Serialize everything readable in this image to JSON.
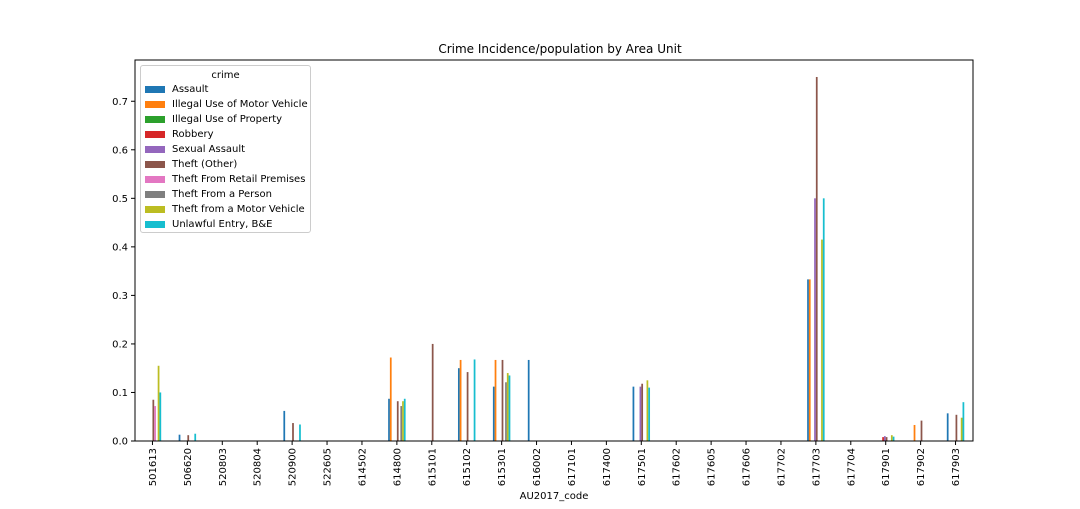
{
  "chart_data": {
    "type": "bar",
    "title": "Crime Incidence/population by Area Unit",
    "xlabel": "AU2017_code",
    "ylabel": "",
    "ylim": [
      0,
      0.785
    ],
    "yticks": [
      "0.0",
      "0.1",
      "0.2",
      "0.3",
      "0.4",
      "0.5",
      "0.6",
      "0.7"
    ],
    "grid": false,
    "legend_title": "crime",
    "legend_position": "top-left",
    "categories": [
      "501613",
      "506620",
      "520803",
      "520804",
      "520900",
      "522605",
      "614502",
      "614800",
      "615101",
      "615102",
      "615301",
      "616002",
      "617101",
      "617400",
      "617501",
      "617602",
      "617605",
      "617606",
      "617702",
      "617703",
      "617704",
      "617901",
      "617902",
      "617903"
    ],
    "series": [
      {
        "name": "Assault",
        "color": "#1f77b4",
        "values": [
          0,
          0.013,
          0,
          0,
          0.062,
          0,
          0,
          0.087,
          0,
          0.15,
          0.112,
          0.167,
          0,
          0,
          0.112,
          0,
          0,
          0,
          0,
          0.333,
          0,
          0,
          0,
          0.057
        ]
      },
      {
        "name": "Illegal Use of Motor Vehicle",
        "color": "#ff7f0e",
        "values": [
          0,
          0,
          0,
          0,
          0,
          0,
          0,
          0.172,
          0,
          0.167,
          0.167,
          0,
          0,
          0,
          0,
          0,
          0,
          0,
          0,
          0.333,
          0,
          0,
          0.033,
          0
        ]
      },
      {
        "name": "Illegal Use of Property",
        "color": "#2ca02c",
        "values": [
          0,
          0,
          0,
          0,
          0,
          0,
          0,
          0,
          0,
          0,
          0,
          0,
          0,
          0,
          0,
          0,
          0,
          0,
          0,
          0,
          0,
          0,
          0,
          0
        ]
      },
      {
        "name": "Robbery",
        "color": "#d62728",
        "values": [
          0,
          0,
          0,
          0,
          0,
          0,
          0,
          0,
          0,
          0,
          0,
          0,
          0,
          0,
          0,
          0,
          0,
          0,
          0,
          0,
          0,
          0.008,
          0,
          0
        ]
      },
      {
        "name": "Sexual Assault",
        "color": "#9467bd",
        "values": [
          0,
          0,
          0,
          0,
          0,
          0,
          0,
          0,
          0,
          0,
          0,
          0,
          0,
          0,
          0.112,
          0,
          0,
          0,
          0,
          0.5,
          0,
          0.01,
          0,
          0
        ]
      },
      {
        "name": "Theft (Other)",
        "color": "#8c564b",
        "values": [
          0.085,
          0.012,
          0,
          0,
          0.037,
          0,
          0,
          0.082,
          0.2,
          0.142,
          0.167,
          0,
          0,
          0,
          0.118,
          0,
          0,
          0,
          0,
          0.75,
          0,
          0.008,
          0.042,
          0.054
        ]
      },
      {
        "name": "Theft From Retail Premises",
        "color": "#e377c2",
        "values": [
          0.072,
          0,
          0,
          0,
          0,
          0,
          0,
          0,
          0,
          0,
          0,
          0,
          0,
          0,
          0,
          0,
          0,
          0,
          0,
          0,
          0,
          0,
          0,
          0
        ]
      },
      {
        "name": "Theft From a Person",
        "color": "#7f7f7f",
        "values": [
          0,
          0,
          0,
          0,
          0,
          0,
          0,
          0.072,
          0,
          0,
          0.121,
          0,
          0,
          0,
          0,
          0,
          0,
          0,
          0,
          0,
          0,
          0,
          0,
          0
        ]
      },
      {
        "name": "Theft from a Motor Vehicle",
        "color": "#bcbd22",
        "values": [
          0.155,
          0,
          0,
          0,
          0,
          0,
          0,
          0.082,
          0,
          0,
          0.14,
          0,
          0,
          0,
          0.125,
          0,
          0,
          0,
          0,
          0.415,
          0,
          0.012,
          0,
          0.048
        ]
      },
      {
        "name": "Unlawful Entry, B&E",
        "color": "#17becf",
        "values": [
          0.1,
          0.015,
          0,
          0,
          0.034,
          0,
          0,
          0.087,
          0,
          0.168,
          0.135,
          0,
          0,
          0,
          0.11,
          0,
          0,
          0,
          0,
          0.5,
          0,
          0.009,
          0,
          0.08
        ]
      }
    ]
  }
}
